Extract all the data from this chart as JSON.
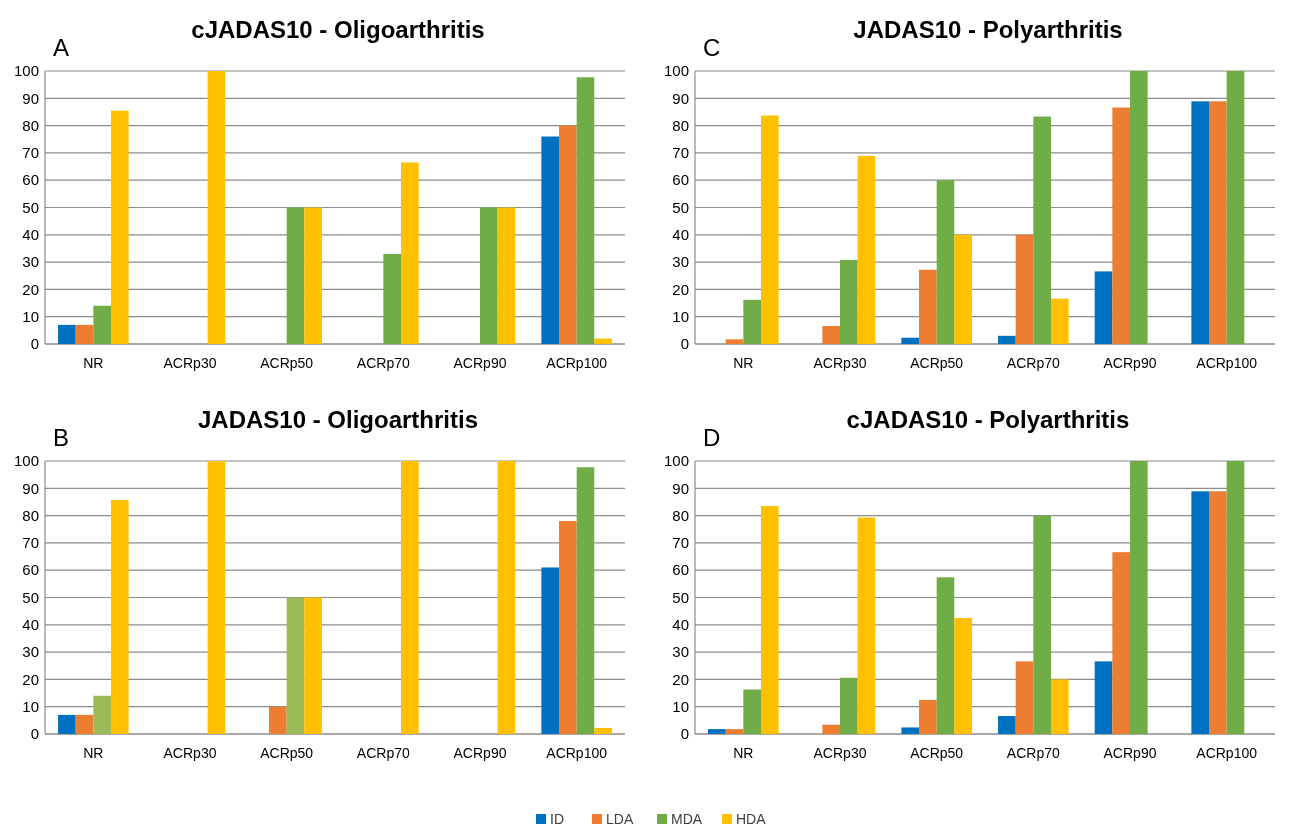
{
  "chart_data": [
    {
      "type": "bar",
      "title": "cJADAS10 - Oligoarthritis",
      "annotations": [
        "A"
      ],
      "categories": [
        "NR",
        "ACRp30",
        "ACRp50",
        "ACRp70",
        "ACRp90",
        "ACRp100"
      ],
      "ylim": [
        0,
        100
      ],
      "yticks": [
        0,
        10,
        20,
        30,
        40,
        50,
        60,
        70,
        80,
        90,
        100
      ],
      "grid": "y",
      "legend": "bottom",
      "series": [
        {
          "name": "ID",
          "color": "#0070c0",
          "values": [
            7,
            null,
            null,
            null,
            null,
            76
          ]
        },
        {
          "name": "LDA",
          "color": "#ed7d31",
          "values": [
            7,
            null,
            null,
            null,
            null,
            80
          ]
        },
        {
          "name": "MDA",
          "color": "#70ad47",
          "values": [
            14,
            null,
            50,
            33,
            50,
            97.7
          ]
        },
        {
          "name": "HDA",
          "color": "#ffc000",
          "values": [
            85.5,
            100,
            50,
            66.5,
            50,
            2
          ]
        }
      ]
    },
    {
      "type": "bar",
      "title": "JADAS10 - Oligoarthritis",
      "annotations": [
        "B"
      ],
      "categories": [
        "NR",
        "ACRp30",
        "ACRp50",
        "ACRp70",
        "ACRp90",
        "ACRp100"
      ],
      "ylim": [
        0,
        100
      ],
      "yticks": [
        0,
        10,
        20,
        30,
        40,
        50,
        60,
        70,
        80,
        90,
        100
      ],
      "grid": "y",
      "series": [
        {
          "color": "#0070c0",
          "values": [
            7,
            null,
            null,
            null,
            null,
            61
          ]
        },
        {
          "color": "#ed7d31",
          "values": [
            7,
            null,
            10,
            null,
            null,
            78
          ]
        },
        {
          "colors": [
            "#9bbb59",
            null,
            "#9bbb59",
            null,
            null,
            "#70ad47"
          ],
          "values": [
            14,
            null,
            50,
            null,
            null,
            97.7
          ]
        },
        {
          "color": "#ffc000",
          "values": [
            85.7,
            100,
            50,
            100,
            100,
            2.2
          ]
        }
      ]
    },
    {
      "type": "bar",
      "title": "JADAS10 - Polyarthritis",
      "annotations": [
        "C"
      ],
      "categories": [
        "NR",
        "ACRp30",
        "ACRp50",
        "ACRp70",
        "ACRp90",
        "ACRp100"
      ],
      "ylim": [
        0,
        100
      ],
      "yticks": [
        0,
        10,
        20,
        30,
        40,
        50,
        60,
        70,
        80,
        90,
        100
      ],
      "grid": "y",
      "series": [
        {
          "color": "#0070c0",
          "values": [
            null,
            null,
            2.3,
            3,
            26.6,
            88.9
          ]
        },
        {
          "color": "#ed7d31",
          "values": [
            1.7,
            6.6,
            27.2,
            40,
            86.6,
            88.9
          ]
        },
        {
          "color": "#70ad47",
          "values": [
            16.2,
            30.8,
            60,
            83.3,
            100,
            100
          ]
        },
        {
          "color": "#ffc000",
          "values": [
            83.7,
            68.9,
            40,
            16.6,
            null,
            null
          ]
        }
      ]
    },
    {
      "type": "bar",
      "title": "cJADAS10 - Polyarthritis",
      "annotations": [
        "D"
      ],
      "categories": [
        "NR",
        "ACRp30",
        "ACRp50",
        "ACRp70",
        "ACRp90",
        "ACRp100"
      ],
      "ylim": [
        0,
        100
      ],
      "yticks": [
        0,
        10,
        20,
        30,
        40,
        50,
        60,
        70,
        80,
        90,
        100
      ],
      "grid": "y",
      "series": [
        {
          "color": "#0070c0",
          "values": [
            1.8,
            null,
            2.4,
            6.6,
            26.6,
            88.9
          ]
        },
        {
          "color": "#ed7d31",
          "values": [
            1.8,
            3.4,
            12.5,
            26.6,
            66.6,
            88.9
          ]
        },
        {
          "color": "#70ad47",
          "values": [
            16.3,
            20.6,
            57.4,
            80,
            100,
            100
          ]
        },
        {
          "color": "#ffc000",
          "values": [
            83.5,
            79.3,
            42.5,
            20,
            null,
            null
          ]
        }
      ]
    }
  ]
}
